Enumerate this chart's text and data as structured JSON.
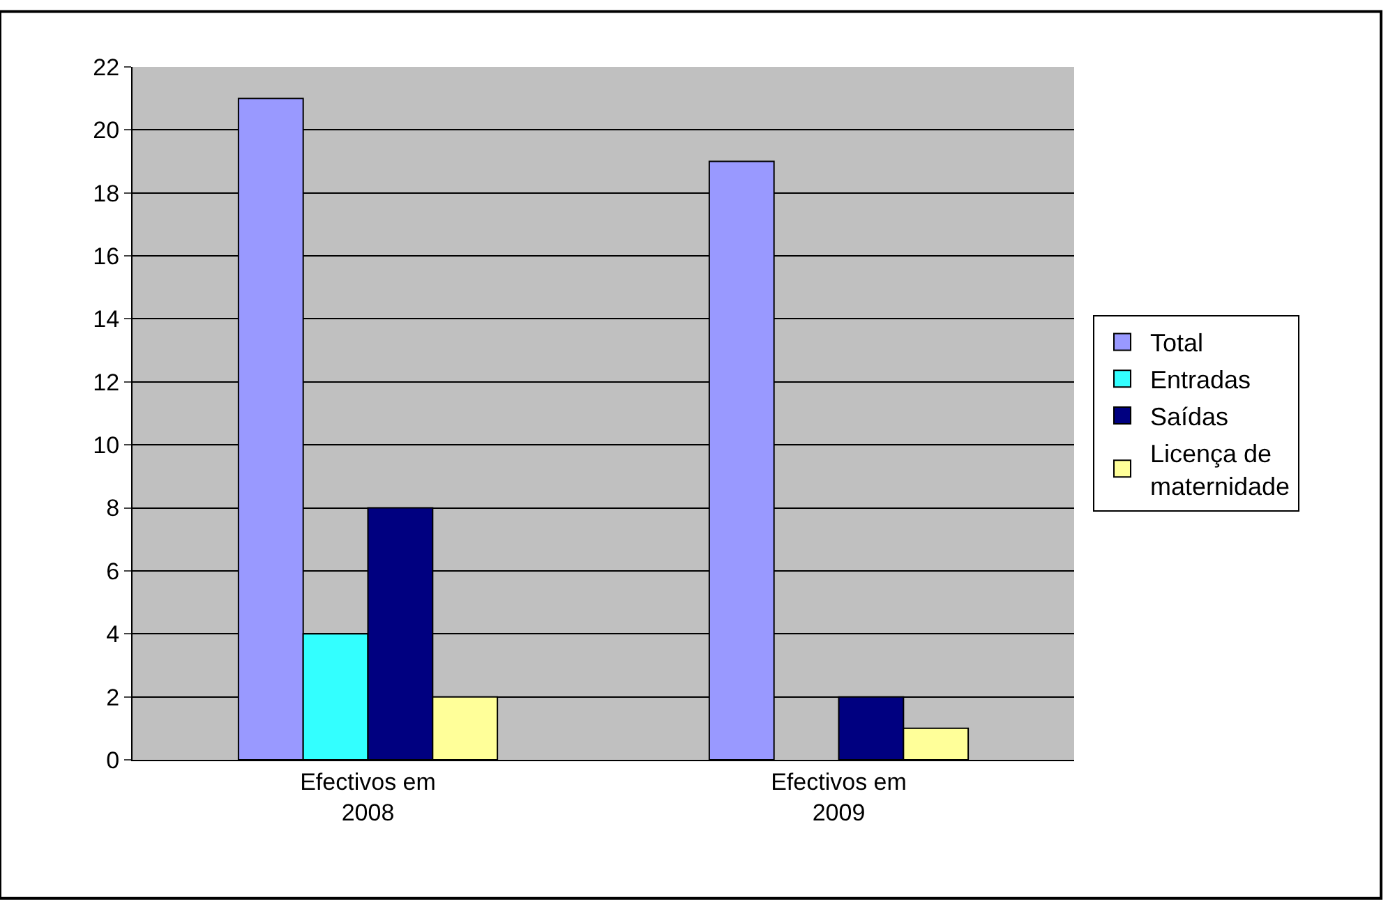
{
  "chart_data": {
    "type": "bar",
    "categories": [
      "Efectivos em\n2008",
      "Efectivos em\n2009"
    ],
    "series": [
      {
        "name": "Total",
        "color": "#9999ff",
        "values": [
          21,
          19
        ]
      },
      {
        "name": "Entradas",
        "color": "#33ffff",
        "values": [
          4,
          null
        ]
      },
      {
        "name": "Saídas",
        "color": "#000080",
        "values": [
          8,
          2
        ]
      },
      {
        "name": "Licença de\nmaternidade",
        "color": "#ffff99",
        "values": [
          2,
          1
        ]
      }
    ],
    "ylim": [
      0,
      22
    ],
    "yticks": [
      0,
      2,
      4,
      6,
      8,
      10,
      12,
      14,
      16,
      18,
      20,
      22
    ],
    "grid": "y",
    "legend": "right"
  }
}
